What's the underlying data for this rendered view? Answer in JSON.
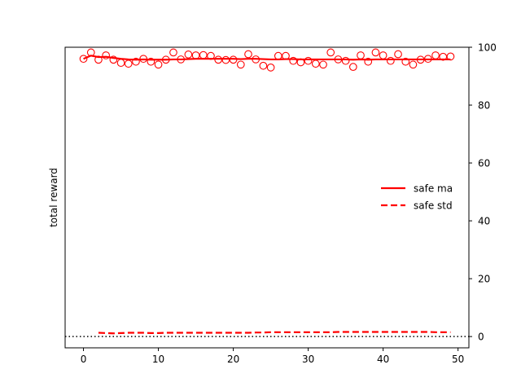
{
  "chart_data": {
    "type": "scatter",
    "ylabel": "total reward",
    "xlim": [
      -2.45,
      51.45
    ],
    "ylim": [
      -3.9,
      100
    ],
    "xticks": [
      0,
      10,
      20,
      30,
      40,
      50
    ],
    "yticks": [
      0,
      20,
      40,
      60,
      80,
      100
    ],
    "y_axis_side": "right",
    "grid": false,
    "legend": {
      "placement": "center-right",
      "entries": [
        "safe ma",
        "safe std"
      ]
    },
    "reference_line": {
      "y": 0,
      "style": "dotted",
      "color": "#000000"
    },
    "series": [
      {
        "kind": "points",
        "marker": "hollow-circle",
        "color": "#ff0000",
        "x": [
          0,
          1,
          2,
          3,
          4,
          5,
          6,
          7,
          8,
          9,
          10,
          11,
          12,
          13,
          14,
          15,
          16,
          17,
          18,
          19,
          20,
          21,
          22,
          23,
          24,
          25,
          26,
          27,
          28,
          29,
          30,
          31,
          32,
          33,
          34,
          35,
          36,
          37,
          38,
          39,
          40,
          41,
          42,
          43,
          44,
          45,
          46,
          47,
          48,
          49
        ],
        "values": [
          96,
          98.2,
          95.7,
          97.2,
          95.7,
          94.6,
          94.3,
          95,
          96,
          95,
          94,
          95.7,
          98.2,
          95.8,
          97.5,
          97.2,
          97.3,
          97,
          95.7,
          95.6,
          95.7,
          94,
          97.6,
          95.8,
          93.6,
          93,
          97,
          97,
          95.3,
          94.8,
          95.3,
          94.3,
          94,
          98.2,
          95.8,
          95.3,
          93.2,
          97.2,
          95,
          98.2,
          97.2,
          95.3,
          97.6,
          95,
          94,
          95.7,
          96,
          97.2,
          96.7,
          96.8
        ]
      },
      {
        "name": "safe ma",
        "kind": "line",
        "color": "#ff0000",
        "dash": "solid",
        "x": [
          0,
          1,
          2,
          3,
          4,
          5,
          6,
          7,
          8,
          9,
          10,
          11,
          12,
          13,
          14,
          15,
          16,
          17,
          18,
          19,
          20,
          21,
          22,
          23,
          24,
          25,
          26,
          27,
          28,
          29,
          30,
          31,
          32,
          33,
          34,
          35,
          36,
          37,
          38,
          39,
          40,
          41,
          42,
          43,
          44,
          45,
          46,
          47,
          48,
          49
        ],
        "values": [
          96,
          97.1,
          96.6,
          96.7,
          96.3,
          96,
          95.8,
          95.7,
          95.8,
          95.7,
          95.7,
          95.7,
          95.8,
          95.8,
          95.9,
          96,
          96,
          96,
          96,
          96,
          96,
          95.9,
          96,
          96,
          95.9,
          95.8,
          95.8,
          95.9,
          95.9,
          95.8,
          95.8,
          95.8,
          95.8,
          95.8,
          95.8,
          95.8,
          95.7,
          95.8,
          95.7,
          95.8,
          95.8,
          95.8,
          95.8,
          95.8,
          95.8,
          95.8,
          95.8,
          95.8,
          95.8,
          95.8
        ]
      },
      {
        "name": "safe std",
        "kind": "line",
        "color": "#ff0000",
        "dash": "dashed",
        "x": [
          2,
          3,
          4,
          5,
          6,
          7,
          8,
          9,
          10,
          11,
          12,
          13,
          14,
          15,
          16,
          17,
          18,
          19,
          20,
          21,
          22,
          23,
          24,
          25,
          26,
          27,
          28,
          29,
          30,
          31,
          32,
          33,
          34,
          35,
          36,
          37,
          38,
          39,
          40,
          41,
          42,
          43,
          44,
          45,
          46,
          47,
          48,
          49
        ],
        "values": [
          1.3,
          1.2,
          1.1,
          1.2,
          1.3,
          1.3,
          1.3,
          1.2,
          1.2,
          1.3,
          1.3,
          1.3,
          1.3,
          1.3,
          1.3,
          1.3,
          1.3,
          1.3,
          1.3,
          1.3,
          1.3,
          1.4,
          1.4,
          1.5,
          1.5,
          1.5,
          1.5,
          1.5,
          1.5,
          1.5,
          1.5,
          1.5,
          1.6,
          1.6,
          1.6,
          1.6,
          1.6,
          1.6,
          1.6,
          1.6,
          1.6,
          1.6,
          1.6,
          1.6,
          1.6,
          1.5,
          1.5,
          1.5
        ]
      }
    ]
  }
}
